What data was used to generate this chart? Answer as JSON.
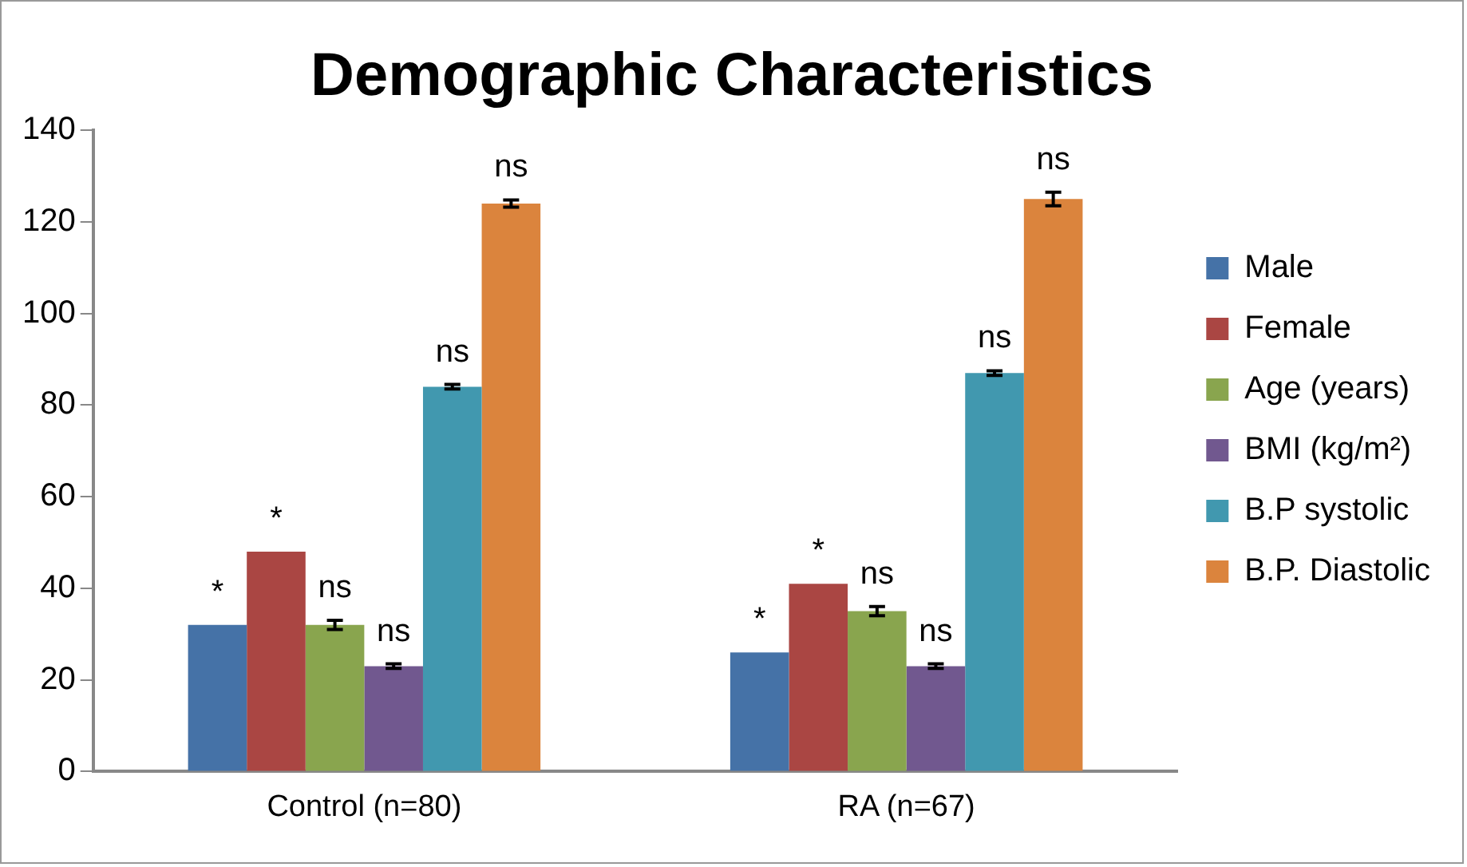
{
  "chart_data": {
    "type": "bar",
    "title": "Demographic Characteristics",
    "categories": [
      "Control (n=80)",
      "RA (n=67)"
    ],
    "series": [
      {
        "name": "Male",
        "color": "#4572a7",
        "values": [
          32,
          26
        ],
        "value_labels": [
          "*",
          "*"
        ]
      },
      {
        "name": "Female",
        "color": "#aa4643",
        "values": [
          48,
          41
        ],
        "value_labels": [
          "*",
          "*"
        ]
      },
      {
        "name": "Age (years)",
        "color": "#89a54e",
        "values": [
          32,
          35
        ],
        "errors": [
          1,
          1
        ],
        "value_labels": [
          "ns",
          "ns"
        ]
      },
      {
        "name": "BMI (kg/m²)",
        "color": "#71588f",
        "values": [
          23,
          23
        ],
        "errors": [
          0.5,
          0.5
        ],
        "value_labels": [
          "ns",
          "ns"
        ]
      },
      {
        "name": "B.P systolic",
        "color": "#4198af",
        "values": [
          84,
          87
        ],
        "errors": [
          0.5,
          0.5
        ],
        "value_labels": [
          "ns",
          "ns"
        ]
      },
      {
        "name": "B.P. Diastolic",
        "color": "#db843d",
        "values": [
          124,
          125
        ],
        "errors": [
          0.8,
          1.5
        ],
        "value_labels": [
          "ns",
          "ns"
        ]
      }
    ],
    "ylim": [
      0,
      140
    ],
    "yticks": [
      0,
      20,
      40,
      60,
      80,
      100,
      120,
      140
    ],
    "grid": false,
    "legend": "right"
  }
}
